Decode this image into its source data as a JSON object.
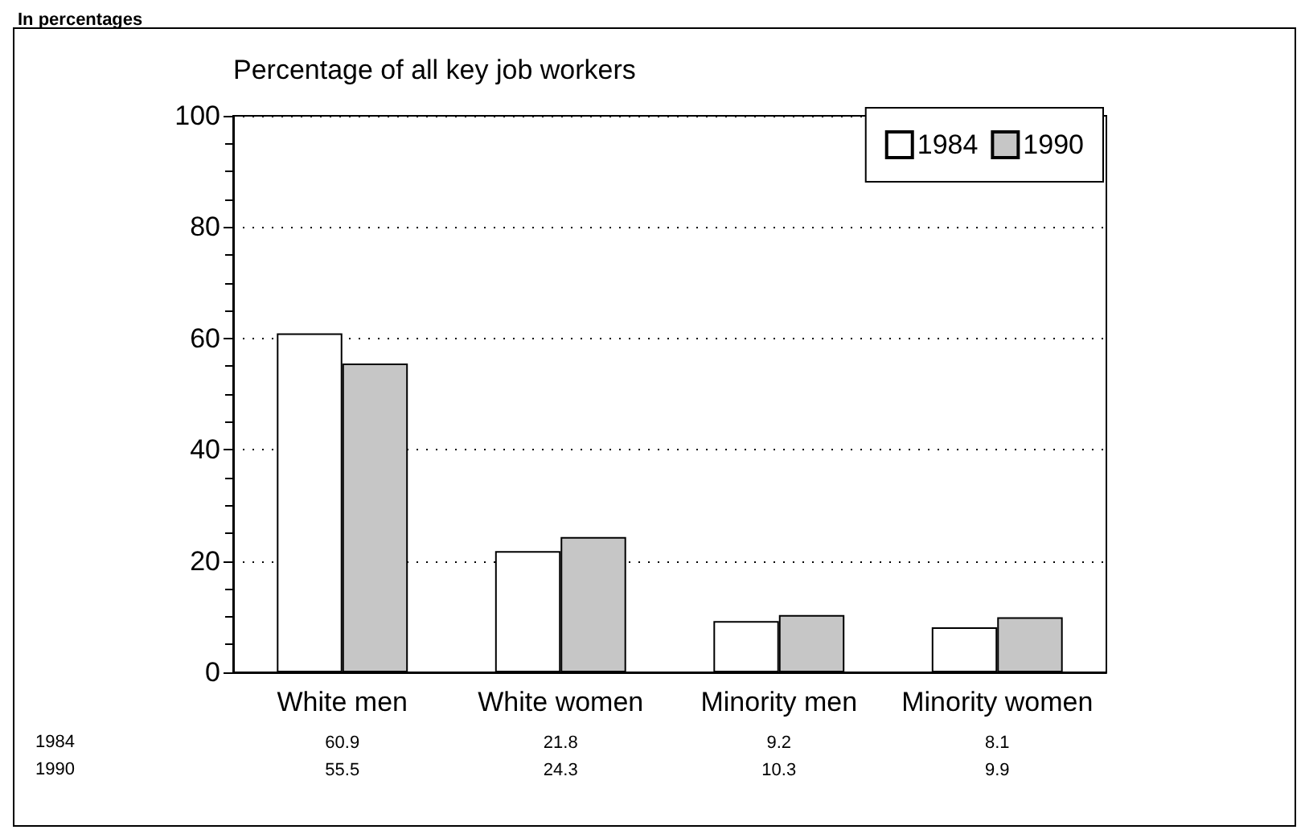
{
  "chart_data": {
    "type": "bar",
    "subtitle": "In percentages",
    "ylabel": "Percentage of all key job workers",
    "categories": [
      "White men",
      "White women",
      "Minority men",
      "Minority women"
    ],
    "series": [
      {
        "name": "1984",
        "color": "#ffffff",
        "values": [
          60.9,
          21.8,
          9.2,
          8.1
        ]
      },
      {
        "name": "1990",
        "color": "#c6c6c6",
        "values": [
          55.5,
          24.3,
          10.3,
          9.9
        ]
      }
    ],
    "ylim": [
      0,
      100
    ],
    "yticks": [
      0,
      20,
      40,
      60,
      80,
      100
    ],
    "grid": "y",
    "legend": "top right",
    "data_labels": true
  }
}
